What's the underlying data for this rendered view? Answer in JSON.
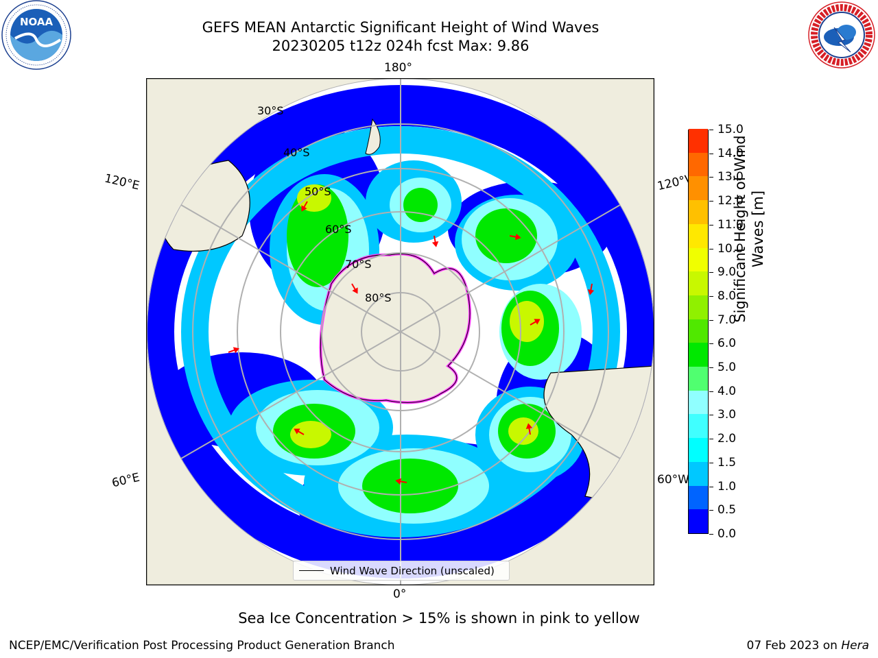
{
  "title": {
    "line1": "GEFS MEAN Antarctic Significant Height of Wind Waves",
    "line2": "20230205 t12z 024h fcst   Max: 9.86"
  },
  "logos": {
    "left": {
      "name": "NOAA",
      "text": "NOAA",
      "ring_text": "NATIONAL OCEANIC AND ATMOSPHERIC ADMINISTRATION · U.S. DEPARTMENT OF COMMERCE"
    },
    "right": {
      "name": "National Weather Service",
      "ring_text": "NATIONAL WEATHER SERVICE"
    }
  },
  "map": {
    "projection": "south polar stereographic",
    "longitude_labels": {
      "top": "180°",
      "bottom": "0°",
      "upper_left": "120°E",
      "upper_right": "120°W",
      "lower_left": "60°E",
      "lower_right": "60°W"
    },
    "latitude_labels": [
      "30°S",
      "40°S",
      "50°S",
      "60°S",
      "70°S",
      "80°S"
    ],
    "legend": "Wind Wave Direction (unscaled)",
    "colors": {
      "land": "#efedde",
      "ocean_no_data": "#ffffff",
      "sea_ice": "#ff3cff",
      "arrows": "#ff0000",
      "grid": "#b0b0b0"
    }
  },
  "colorbar": {
    "title_line1": "Significant Height of Wind",
    "title_line2": "Waves [m]",
    "tick_labels": [
      "0.0",
      "0.5",
      "1.0",
      "1.5",
      "2.0",
      "3.0",
      "4.0",
      "5.0",
      "6.0",
      "7.0",
      "8.0",
      "9.0",
      "10.0",
      "11.0",
      "12.0",
      "13.0",
      "14.0",
      "15.0"
    ],
    "colors": [
      "#0000ff",
      "#0064ff",
      "#00c8ff",
      "#00ffff",
      "#40ffff",
      "#90ffff",
      "#50ff70",
      "#00e800",
      "#50e800",
      "#90f000",
      "#c8f800",
      "#f0ff00",
      "#ffe800",
      "#ffc000",
      "#ff9000",
      "#ff6800",
      "#ff3000"
    ]
  },
  "caption": "Sea Ice Concentration > 15% is shown in pink to yellow",
  "footer": {
    "left": "NCEP/EMC/Verification Post Processing Product Generation Branch",
    "right_date": "07 Feb 2023 on",
    "right_machine": "Hera"
  }
}
